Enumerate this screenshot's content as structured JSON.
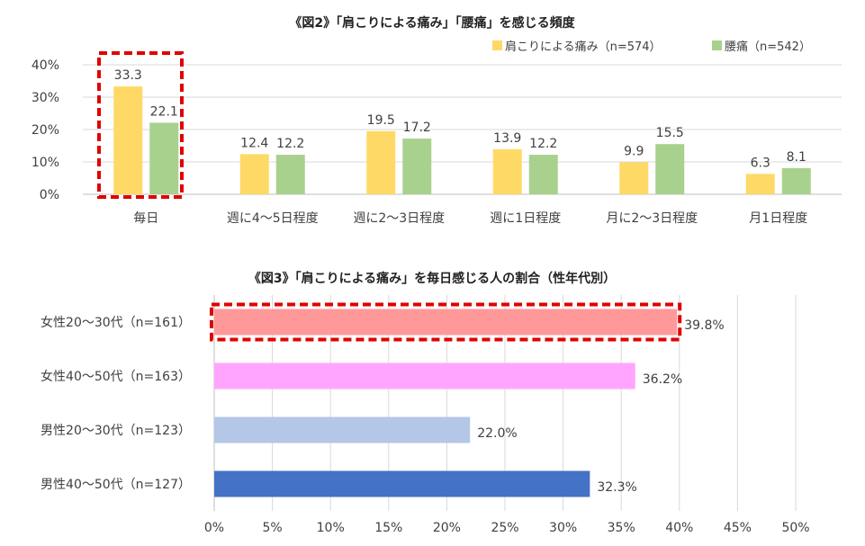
{
  "chart_data": [
    {
      "type": "bar",
      "title": "《図2》「肩こりによる痛み」「腰痛」を感じる頻度",
      "categories": [
        "毎日",
        "週に4～5日程度",
        "週に2～3日程度",
        "週に1日程度",
        "月に2～3日程度",
        "月1日程度"
      ],
      "series": [
        {
          "name": "肩こりによる痛み（n=574）",
          "color": "#FFD966",
          "values": [
            33.3,
            12.4,
            19.5,
            13.9,
            9.9,
            6.3
          ]
        },
        {
          "name": "腰痛（n=542）",
          "color": "#A9D18E",
          "values": [
            22.1,
            12.2,
            17.2,
            12.2,
            15.5,
            8.1
          ]
        }
      ],
      "ylim": [
        0,
        40
      ],
      "yticks": [
        "0%",
        "10%",
        "20%",
        "30%",
        "40%"
      ],
      "grid": true,
      "legend": "top-right",
      "highlight_category": "毎日",
      "highlight_color": "#E00000"
    },
    {
      "type": "bar",
      "orientation": "horizontal",
      "title": "《図3》「肩こりによる痛み」を毎日感じる人の割合（性年代別）",
      "categories": [
        "女性20～30代（n=161）",
        "女性40～50代（n=163）",
        "男性20～30代（n=123）",
        "男性40～50代（n=127）"
      ],
      "values": [
        39.8,
        36.2,
        22.0,
        32.3
      ],
      "value_labels": [
        "39.8%",
        "36.2%",
        "22.0%",
        "32.3%"
      ],
      "colors": [
        "#FF9999",
        "#FFA5FF",
        "#B4C7E7",
        "#4472C4"
      ],
      "xlim": [
        0,
        50
      ],
      "xticks": [
        "0%",
        "5%",
        "10%",
        "15%",
        "20%",
        "25%",
        "30%",
        "35%",
        "40%",
        "45%",
        "50%"
      ],
      "grid": true,
      "highlight_category": "女性20～30代（n=161）",
      "highlight_color": "#E00000"
    }
  ]
}
